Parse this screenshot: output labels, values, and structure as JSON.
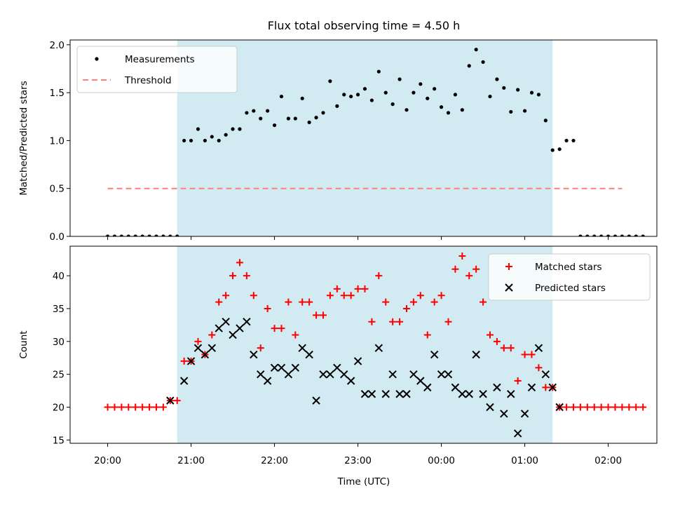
{
  "title": "Flux total observing time = 4.50 h",
  "xlabel": "Time (UTC)",
  "x_ticks": [
    "20:00",
    "21:00",
    "22:00",
    "23:00",
    "00:00",
    "01:00",
    "02:00"
  ],
  "colors": {
    "observing_window": "#add8e6",
    "measurements": "#000000",
    "threshold": "#ff7f7f",
    "matched": "#ff0000",
    "predicted": "#000000"
  },
  "chart_data": [
    {
      "type": "scatter",
      "ylabel": "Matched/Predicted stars",
      "ylim": [
        0,
        2.05
      ],
      "yticks": [
        "0.0",
        "0.5",
        "1.0",
        "1.5",
        "2.0"
      ],
      "observing_window": [
        "20:50",
        "01:20"
      ],
      "legend_position": "top-left",
      "legend": [
        "Measurements",
        "Threshold"
      ],
      "threshold": {
        "name": "Threshold",
        "y": 0.5,
        "x_start": "20:00",
        "x_end": "02:10"
      },
      "series": [
        {
          "name": "Measurements",
          "points": [
            [
              "20:00",
              0
            ],
            [
              "20:05",
              0
            ],
            [
              "20:10",
              0
            ],
            [
              "20:15",
              0
            ],
            [
              "20:20",
              0
            ],
            [
              "20:25",
              0
            ],
            [
              "20:30",
              0
            ],
            [
              "20:35",
              0
            ],
            [
              "20:40",
              0
            ],
            [
              "20:45",
              0
            ],
            [
              "20:50",
              0
            ],
            [
              "20:55",
              1.0
            ],
            [
              "21:00",
              1.0
            ],
            [
              "21:05",
              1.12
            ],
            [
              "21:10",
              1.0
            ],
            [
              "21:15",
              1.04
            ],
            [
              "21:20",
              1.0
            ],
            [
              "21:25",
              1.06
            ],
            [
              "21:30",
              1.12
            ],
            [
              "21:35",
              1.12
            ],
            [
              "21:40",
              1.29
            ],
            [
              "21:45",
              1.31
            ],
            [
              "21:50",
              1.23
            ],
            [
              "21:55",
              1.31
            ],
            [
              "22:00",
              1.16
            ],
            [
              "22:05",
              1.46
            ],
            [
              "22:10",
              1.23
            ],
            [
              "22:15",
              1.23
            ],
            [
              "22:20",
              1.44
            ],
            [
              "22:25",
              1.19
            ],
            [
              "22:30",
              1.24
            ],
            [
              "22:35",
              1.29
            ],
            [
              "22:40",
              1.62
            ],
            [
              "22:45",
              1.36
            ],
            [
              "22:50",
              1.48
            ],
            [
              "22:55",
              1.46
            ],
            [
              "23:00",
              1.48
            ],
            [
              "23:05",
              1.54
            ],
            [
              "23:10",
              1.42
            ],
            [
              "23:15",
              1.72
            ],
            [
              "23:20",
              1.5
            ],
            [
              "23:25",
              1.38
            ],
            [
              "23:30",
              1.64
            ],
            [
              "23:35",
              1.32
            ],
            [
              "23:40",
              1.5
            ],
            [
              "23:45",
              1.59
            ],
            [
              "23:50",
              1.44
            ],
            [
              "23:55",
              1.54
            ],
            [
              "00:00",
              1.35
            ],
            [
              "00:05",
              1.29
            ],
            [
              "00:10",
              1.48
            ],
            [
              "00:15",
              1.32
            ],
            [
              "00:20",
              1.78
            ],
            [
              "00:25",
              1.95
            ],
            [
              "00:30",
              1.82
            ],
            [
              "00:35",
              1.46
            ],
            [
              "00:40",
              1.64
            ],
            [
              "00:45",
              1.55
            ],
            [
              "00:50",
              1.3
            ],
            [
              "00:55",
              1.53
            ],
            [
              "01:00",
              1.31
            ],
            [
              "01:05",
              1.5
            ],
            [
              "01:10",
              1.48
            ],
            [
              "01:15",
              1.21
            ],
            [
              "01:20",
              0.9
            ],
            [
              "01:25",
              0.91
            ],
            [
              "01:30",
              1.0
            ],
            [
              "01:35",
              1.0
            ],
            [
              "01:40",
              0
            ],
            [
              "01:45",
              0
            ],
            [
              "01:50",
              0
            ],
            [
              "01:55",
              0
            ],
            [
              "02:00",
              0
            ],
            [
              "02:05",
              0
            ],
            [
              "02:10",
              0
            ],
            [
              "02:15",
              0
            ],
            [
              "02:20",
              0
            ],
            [
              "02:25",
              0
            ]
          ]
        }
      ]
    },
    {
      "type": "scatter",
      "ylabel": "Count",
      "ylim": [
        14.5,
        44.5
      ],
      "yticks": [
        "15",
        "20",
        "25",
        "30",
        "35",
        "40"
      ],
      "observing_window": [
        "20:50",
        "01:20"
      ],
      "legend_position": "top-right",
      "legend": [
        "Matched stars",
        "Predicted stars"
      ],
      "series": [
        {
          "name": "Matched stars",
          "points": [
            [
              "20:00",
              20
            ],
            [
              "20:05",
              20
            ],
            [
              "20:10",
              20
            ],
            [
              "20:15",
              20
            ],
            [
              "20:20",
              20
            ],
            [
              "20:25",
              20
            ],
            [
              "20:30",
              20
            ],
            [
              "20:35",
              20
            ],
            [
              "20:40",
              20
            ],
            [
              "20:45",
              21
            ],
            [
              "20:50",
              21
            ],
            [
              "20:55",
              27
            ],
            [
              "21:00",
              27
            ],
            [
              "21:05",
              30
            ],
            [
              "21:10",
              28
            ],
            [
              "21:15",
              31
            ],
            [
              "21:20",
              36
            ],
            [
              "21:25",
              37
            ],
            [
              "21:30",
              40
            ],
            [
              "21:35",
              42
            ],
            [
              "21:40",
              40
            ],
            [
              "21:45",
              37
            ],
            [
              "21:50",
              29
            ],
            [
              "21:55",
              35
            ],
            [
              "22:00",
              32
            ],
            [
              "22:05",
              32
            ],
            [
              "22:10",
              36
            ],
            [
              "22:15",
              31
            ],
            [
              "22:20",
              36
            ],
            [
              "22:25",
              36
            ],
            [
              "22:30",
              34
            ],
            [
              "22:35",
              34
            ],
            [
              "22:40",
              37
            ],
            [
              "22:45",
              38
            ],
            [
              "22:50",
              37
            ],
            [
              "22:55",
              37
            ],
            [
              "23:00",
              38
            ],
            [
              "23:05",
              38
            ],
            [
              "23:10",
              33
            ],
            [
              "23:15",
              40
            ],
            [
              "23:20",
              36
            ],
            [
              "23:25",
              33
            ],
            [
              "23:30",
              33
            ],
            [
              "23:35",
              35
            ],
            [
              "23:40",
              36
            ],
            [
              "23:45",
              37
            ],
            [
              "23:50",
              31
            ],
            [
              "23:55",
              36
            ],
            [
              "00:00",
              37
            ],
            [
              "00:05",
              33
            ],
            [
              "00:10",
              41
            ],
            [
              "00:15",
              43
            ],
            [
              "00:20",
              40
            ],
            [
              "00:25",
              41
            ],
            [
              "00:30",
              36
            ],
            [
              "00:35",
              31
            ],
            [
              "00:40",
              30
            ],
            [
              "00:45",
              29
            ],
            [
              "00:50",
              29
            ],
            [
              "00:55",
              24
            ],
            [
              "01:00",
              28
            ],
            [
              "01:05",
              28
            ],
            [
              "01:10",
              26
            ],
            [
              "01:15",
              23
            ],
            [
              "01:20",
              23
            ],
            [
              "01:25",
              20
            ],
            [
              "01:30",
              20
            ],
            [
              "01:35",
              20
            ],
            [
              "01:40",
              20
            ],
            [
              "01:45",
              20
            ],
            [
              "01:50",
              20
            ],
            [
              "01:55",
              20
            ],
            [
              "02:00",
              20
            ],
            [
              "02:05",
              20
            ],
            [
              "02:10",
              20
            ],
            [
              "02:15",
              20
            ],
            [
              "02:20",
              20
            ],
            [
              "02:25",
              20
            ]
          ]
        },
        {
          "name": "Predicted stars",
          "points": [
            [
              "20:45",
              21
            ],
            [
              "20:55",
              24
            ],
            [
              "21:00",
              27
            ],
            [
              "21:05",
              29
            ],
            [
              "21:10",
              28
            ],
            [
              "21:15",
              29
            ],
            [
              "21:20",
              32
            ],
            [
              "21:25",
              33
            ],
            [
              "21:30",
              31
            ],
            [
              "21:35",
              32
            ],
            [
              "21:40",
              33
            ],
            [
              "21:45",
              28
            ],
            [
              "21:50",
              25
            ],
            [
              "21:55",
              24
            ],
            [
              "22:00",
              26
            ],
            [
              "22:05",
              26
            ],
            [
              "22:10",
              25
            ],
            [
              "22:15",
              26
            ],
            [
              "22:20",
              29
            ],
            [
              "22:25",
              28
            ],
            [
              "22:30",
              21
            ],
            [
              "22:35",
              25
            ],
            [
              "22:40",
              25
            ],
            [
              "22:45",
              26
            ],
            [
              "22:50",
              25
            ],
            [
              "22:55",
              24
            ],
            [
              "23:00",
              27
            ],
            [
              "23:05",
              22
            ],
            [
              "23:10",
              22
            ],
            [
              "23:15",
              29
            ],
            [
              "23:20",
              22
            ],
            [
              "23:25",
              25
            ],
            [
              "23:30",
              22
            ],
            [
              "23:35",
              22
            ],
            [
              "23:40",
              25
            ],
            [
              "23:45",
              24
            ],
            [
              "23:50",
              23
            ],
            [
              "23:55",
              28
            ],
            [
              "00:00",
              25
            ],
            [
              "00:05",
              25
            ],
            [
              "00:10",
              23
            ],
            [
              "00:15",
              22
            ],
            [
              "00:20",
              22
            ],
            [
              "00:25",
              28
            ],
            [
              "00:30",
              22
            ],
            [
              "00:35",
              20
            ],
            [
              "00:40",
              23
            ],
            [
              "00:45",
              19
            ],
            [
              "00:50",
              22
            ],
            [
              "00:55",
              16
            ],
            [
              "01:00",
              19
            ],
            [
              "01:05",
              23
            ],
            [
              "01:10",
              29
            ],
            [
              "01:15",
              25
            ],
            [
              "01:20",
              23
            ],
            [
              "01:25",
              20
            ]
          ]
        }
      ]
    }
  ]
}
